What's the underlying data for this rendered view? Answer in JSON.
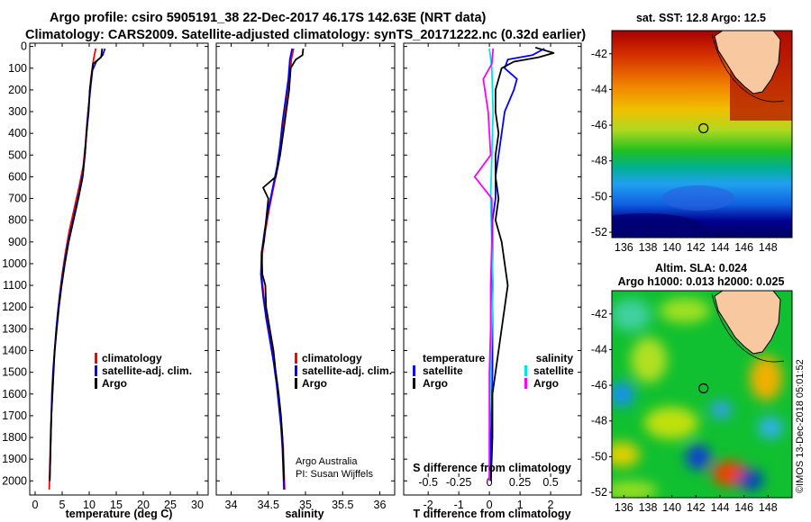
{
  "header": {
    "title_line1": "Argo profile: csiro 5905191_38 22-Dec-2017 46.17S 142.63E (NRT data)",
    "title_line2": "Climatology: CARS2009. Satellite-adjusted climatology: synTS_20171222.nc (0.32d earlier)"
  },
  "colors": {
    "climatology": "#ff0000",
    "satellite": "#0000ff",
    "argo": "#000000",
    "argo_salinity": "#ff00ff",
    "satellite_salinity": "#00e5e5",
    "land": "#f8c8a0"
  },
  "chart_data": [
    {
      "type": "line",
      "panel": "temperature",
      "xlabel": "temperature (deg C)",
      "ylabel": "",
      "xlim": [
        -1,
        32
      ],
      "ylim": [
        2050,
        0
      ],
      "x_ticks": [
        "0",
        "5",
        "10",
        "15",
        "20",
        "25",
        "30"
      ],
      "x_tick_values": [
        0,
        5,
        10,
        15,
        20,
        25,
        30
      ],
      "y_tick_values": [
        0,
        100,
        200,
        300,
        400,
        500,
        600,
        700,
        800,
        900,
        1000,
        1100,
        1200,
        1300,
        1400,
        1500,
        1600,
        1700,
        1800,
        1900,
        2000
      ],
      "legend_position": "lower-right",
      "series": [
        {
          "name": "climatology",
          "color": "#ff0000",
          "points": [
            [
              11.2,
              10
            ],
            [
              10.8,
              60
            ],
            [
              10.3,
              150
            ],
            [
              10.0,
              250
            ],
            [
              9.6,
              350
            ],
            [
              9.3,
              450
            ],
            [
              8.9,
              550
            ],
            [
              8.1,
              650
            ],
            [
              7.2,
              750
            ],
            [
              6.3,
              850
            ],
            [
              5.6,
              950
            ],
            [
              5.0,
              1050
            ],
            [
              4.5,
              1150
            ],
            [
              4.1,
              1250
            ],
            [
              3.8,
              1350
            ],
            [
              3.5,
              1450
            ],
            [
              3.3,
              1550
            ],
            [
              3.1,
              1650
            ],
            [
              2.9,
              1750
            ],
            [
              2.8,
              1850
            ],
            [
              2.7,
              1950
            ],
            [
              2.6,
              2040
            ]
          ]
        },
        {
          "name": "satellite-adj. clim.",
          "color": "#0000ff",
          "points": [
            [
              12.9,
              10
            ],
            [
              12.5,
              40
            ],
            [
              11.3,
              70
            ],
            [
              10.6,
              110
            ],
            [
              10.2,
              200
            ],
            [
              9.8,
              300
            ],
            [
              9.5,
              400
            ],
            [
              9.2,
              500
            ],
            [
              8.7,
              600
            ],
            [
              7.9,
              700
            ],
            [
              7.0,
              800
            ],
            [
              6.1,
              900
            ],
            [
              5.4,
              1000
            ],
            [
              4.8,
              1100
            ],
            [
              4.3,
              1200
            ],
            [
              3.9,
              1300
            ],
            [
              3.6,
              1400
            ],
            [
              3.3,
              1500
            ],
            [
              3.1,
              1600
            ],
            [
              3.0,
              1700
            ],
            [
              2.9,
              1800
            ],
            [
              2.8,
              1900
            ],
            [
              2.7,
              2000
            ]
          ]
        },
        {
          "name": "Argo",
          "color": "#000000",
          "points": [
            [
              12.4,
              10
            ],
            [
              12.2,
              50
            ],
            [
              10.7,
              80
            ],
            [
              10.5,
              120
            ],
            [
              10.1,
              200
            ],
            [
              9.9,
              300
            ],
            [
              9.5,
              400
            ],
            [
              9.2,
              500
            ],
            [
              8.8,
              600
            ],
            [
              8.0,
              700
            ],
            [
              7.1,
              800
            ],
            [
              6.2,
              900
            ],
            [
              5.5,
              1000
            ],
            [
              4.9,
              1100
            ],
            [
              4.4,
              1200
            ],
            [
              4.0,
              1300
            ],
            [
              3.6,
              1400
            ],
            [
              3.4,
              1500
            ],
            [
              3.2,
              1600
            ],
            [
              3.0,
              1700
            ],
            [
              2.9,
              1800
            ],
            [
              2.8,
              1900
            ],
            [
              2.7,
              2000
            ]
          ]
        }
      ]
    },
    {
      "type": "line",
      "panel": "salinity",
      "xlabel": "salinity",
      "ylabel": "",
      "xlim": [
        33.8,
        36.2
      ],
      "ylim": [
        2050,
        0
      ],
      "x_ticks": [
        "34",
        "34.5",
        "35",
        "35.5",
        "36"
      ],
      "x_tick_values": [
        34,
        34.5,
        35,
        35.5,
        36
      ],
      "legend_position": "lower-right",
      "annotations": [
        "Argo Australia",
        "PI: Susan Wijffels"
      ],
      "series": [
        {
          "name": "climatology",
          "color": "#ff0000",
          "points": [
            [
              34.84,
              10
            ],
            [
              34.81,
              60
            ],
            [
              34.79,
              150
            ],
            [
              34.75,
              250
            ],
            [
              34.71,
              350
            ],
            [
              34.67,
              450
            ],
            [
              34.63,
              550
            ],
            [
              34.57,
              650
            ],
            [
              34.51,
              750
            ],
            [
              34.46,
              850
            ],
            [
              34.42,
              950
            ],
            [
              34.41,
              1050
            ],
            [
              34.44,
              1150
            ],
            [
              34.48,
              1250
            ],
            [
              34.53,
              1350
            ],
            [
              34.58,
              1450
            ],
            [
              34.62,
              1550
            ],
            [
              34.65,
              1650
            ],
            [
              34.68,
              1750
            ],
            [
              34.7,
              1850
            ],
            [
              34.71,
              1950
            ],
            [
              34.72,
              2040
            ]
          ]
        },
        {
          "name": "satellite-adj. clim.",
          "color": "#0000ff",
          "points": [
            [
              34.82,
              10
            ],
            [
              34.79,
              60
            ],
            [
              34.77,
              150
            ],
            [
              34.73,
              250
            ],
            [
              34.69,
              350
            ],
            [
              34.66,
              450
            ],
            [
              34.62,
              550
            ],
            [
              34.56,
              650
            ],
            [
              34.5,
              750
            ],
            [
              34.45,
              850
            ],
            [
              34.41,
              950
            ],
            [
              34.4,
              1050
            ],
            [
              34.43,
              1150
            ],
            [
              34.47,
              1250
            ],
            [
              34.52,
              1350
            ],
            [
              34.57,
              1450
            ],
            [
              34.61,
              1550
            ],
            [
              34.64,
              1650
            ],
            [
              34.67,
              1750
            ],
            [
              34.69,
              1850
            ],
            [
              34.7,
              1950
            ],
            [
              34.71,
              2040
            ]
          ]
        },
        {
          "name": "Argo",
          "color": "#000000",
          "points": [
            [
              34.97,
              10
            ],
            [
              34.96,
              40
            ],
            [
              34.87,
              60
            ],
            [
              34.8,
              100
            ],
            [
              34.78,
              200
            ],
            [
              34.74,
              300
            ],
            [
              34.7,
              400
            ],
            [
              34.66,
              500
            ],
            [
              34.6,
              600
            ],
            [
              34.43,
              650
            ],
            [
              34.5,
              700
            ],
            [
              34.47,
              800
            ],
            [
              34.44,
              900
            ],
            [
              34.41,
              950
            ],
            [
              34.42,
              1050
            ],
            [
              34.46,
              1100
            ],
            [
              34.47,
              1200
            ],
            [
              34.52,
              1300
            ],
            [
              34.57,
              1400
            ],
            [
              34.6,
              1500
            ],
            [
              34.64,
              1600
            ],
            [
              34.67,
              1700
            ],
            [
              34.69,
              1800
            ],
            [
              34.7,
              1900
            ],
            [
              34.71,
              2000
            ]
          ]
        }
      ]
    },
    {
      "type": "line",
      "panel": "difference",
      "xlabel": "T difference from climatology",
      "xlabel_top": "S difference from climatology",
      "xlim": [
        -2.8,
        3.0
      ],
      "ylim": [
        2050,
        0
      ],
      "x_ticks": [
        "-2",
        "-1",
        "0",
        "1",
        "2"
      ],
      "x_tick_values": [
        -2,
        -1,
        0,
        1,
        2
      ],
      "x_ticks_top": [
        "-0.5",
        "-0.25",
        "0",
        "0.25",
        "0.5"
      ],
      "x_tick_values_top": [
        -0.5,
        -0.25,
        0,
        0.25,
        0.5
      ],
      "legend_temperature_title": "temperature",
      "legend_salinity_title": "salinity",
      "legend_position": "lower-center",
      "series": [
        {
          "name": "satellite",
          "group": "temperature",
          "color": "#0000ff",
          "points": [
            [
              1.8,
              10
            ],
            [
              1.4,
              40
            ],
            [
              0.6,
              60
            ],
            [
              0.5,
              100
            ],
            [
              0.9,
              150
            ],
            [
              0.8,
              200
            ],
            [
              0.5,
              300
            ],
            [
              0.4,
              400
            ],
            [
              0.3,
              500
            ],
            [
              0.2,
              600
            ],
            [
              0.2,
              700
            ],
            [
              0.1,
              800
            ],
            [
              0.1,
              1000
            ],
            [
              0.1,
              1200
            ],
            [
              0.1,
              1500
            ],
            [
              0.05,
              1800
            ],
            [
              0.05,
              2000
            ]
          ]
        },
        {
          "name": "Argo",
          "group": "temperature",
          "color": "#000000",
          "points": [
            [
              1.5,
              5
            ],
            [
              2.1,
              30
            ],
            [
              1.6,
              50
            ],
            [
              0.8,
              70
            ],
            [
              0.4,
              100
            ],
            [
              0.2,
              200
            ],
            [
              0.2,
              300
            ],
            [
              0.3,
              400
            ],
            [
              0.2,
              500
            ],
            [
              0.2,
              600
            ],
            [
              0.3,
              700
            ],
            [
              0.2,
              800
            ],
            [
              0.3,
              850
            ],
            [
              0.4,
              900
            ],
            [
              0.5,
              1000
            ],
            [
              0.6,
              1100
            ],
            [
              0.5,
              1200
            ],
            [
              0.4,
              1300
            ],
            [
              0.3,
              1400
            ],
            [
              0.2,
              1500
            ],
            [
              0.1,
              1600
            ],
            [
              0.1,
              1800
            ],
            [
              0.05,
              2000
            ]
          ]
        },
        {
          "name": "satellite",
          "group": "salinity",
          "color": "#00e5e5",
          "points": [
            [
              0.0,
              10
            ],
            [
              0.02,
              100
            ],
            [
              0.03,
              300
            ],
            [
              0.02,
              500
            ],
            [
              0.01,
              700
            ],
            [
              0.02,
              900
            ],
            [
              0.03,
              1100
            ],
            [
              0.02,
              1300
            ],
            [
              0.01,
              1500
            ],
            [
              0.0,
              1800
            ],
            [
              0.0,
              2000
            ]
          ]
        },
        {
          "name": "Argo",
          "group": "salinity",
          "color": "#ff00ff",
          "points": [
            [
              0.03,
              10
            ],
            [
              0.02,
              80
            ],
            [
              -0.05,
              150
            ],
            [
              -0.01,
              300
            ],
            [
              0.01,
              500
            ],
            [
              -0.12,
              600
            ],
            [
              0.02,
              700
            ],
            [
              0.02,
              900
            ],
            [
              0.01,
              1100
            ],
            [
              0.01,
              1300
            ],
            [
              0.0,
              1500
            ],
            [
              0.0,
              2000
            ]
          ]
        }
      ]
    },
    {
      "type": "heatmap",
      "panel": "sst_map",
      "title": "sat. SST: 12.8 Argo: 12.5",
      "x_ticks": [
        "136",
        "138",
        "140",
        "142",
        "144",
        "146",
        "148"
      ],
      "x_tick_values": [
        136,
        138,
        140,
        142,
        144,
        146,
        148
      ],
      "y_ticks": [
        "-42",
        "-44",
        "-46",
        "-48",
        "-50",
        "-52"
      ],
      "y_tick_values": [
        -42,
        -44,
        -46,
        -48,
        -50,
        -52
      ],
      "xlim": [
        135,
        150
      ],
      "ylim": [
        -52.3,
        -40.7
      ],
      "argo_position": [
        142.63,
        -46.17
      ]
    },
    {
      "type": "heatmap",
      "panel": "sla_map",
      "title": "Altim. SLA: 0.024",
      "subtitle": "Argo h1000: 0.013 h2000: 0.025",
      "x_ticks": [
        "136",
        "138",
        "140",
        "142",
        "144",
        "146",
        "148"
      ],
      "x_tick_values": [
        136,
        138,
        140,
        142,
        144,
        146,
        148
      ],
      "y_ticks": [
        "-42",
        "-44",
        "-46",
        "-48",
        "-50",
        "-52"
      ],
      "y_tick_values": [
        -42,
        -44,
        -46,
        -48,
        -50,
        -52
      ],
      "xlim": [
        135,
        150
      ],
      "ylim": [
        -52.3,
        -40.7
      ],
      "argo_position": [
        142.63,
        -46.17
      ]
    }
  ],
  "temperature_legend": [
    "climatology",
    "satellite-adj. clim.",
    "Argo"
  ],
  "salinity_legend": [
    "climatology",
    "satellite-adj. clim.",
    "Argo"
  ],
  "credit": {
    "line1": "Argo Australia",
    "line2": "PI: Susan Wijffels"
  },
  "side_stamp": "©IMOS 13-Dec-2018 05:01:52"
}
